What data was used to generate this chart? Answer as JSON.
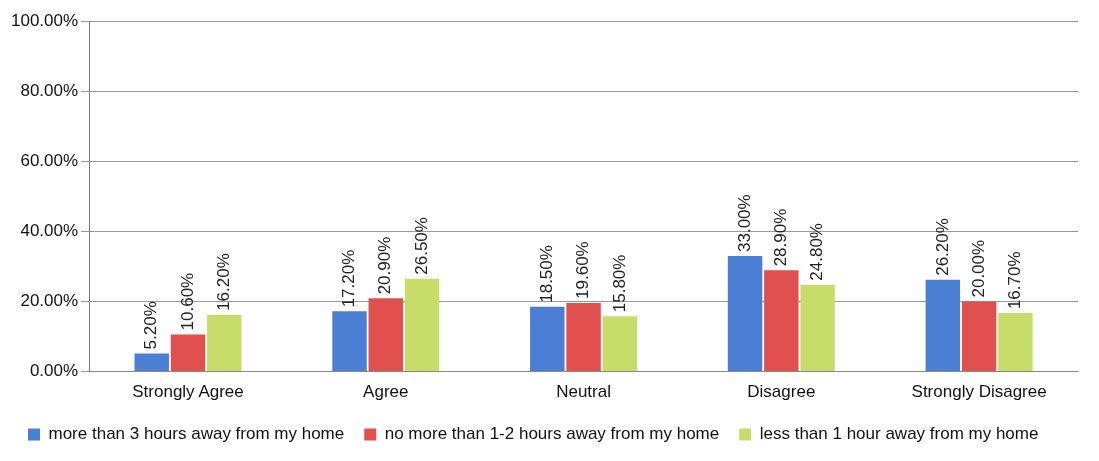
{
  "chart_data": {
    "type": "bar",
    "categories": [
      "Strongly Agree",
      "Agree",
      "Neutral",
      "Disagree",
      "Strongly Disagree"
    ],
    "series": [
      {
        "name": "more than 3 hours away from my home",
        "color": "#4a7fd4",
        "values": [
          5.2,
          17.2,
          18.5,
          33.0,
          26.2
        ],
        "value_labels": [
          "5.20%",
          "17.20%",
          "18.50%",
          "33.00%",
          "26.20%"
        ]
      },
      {
        "name": "no more than 1-2 hours away from my home",
        "color": "#e0504f",
        "values": [
          10.6,
          20.9,
          19.6,
          28.9,
          20.0
        ],
        "value_labels": [
          "10.60%",
          "20.90%",
          "19.60%",
          "28.90%",
          "20.00%"
        ]
      },
      {
        "name": "less than 1 hour away from my home",
        "color": "#c8dc6a",
        "values": [
          16.2,
          26.5,
          15.8,
          24.8,
          16.7
        ],
        "value_labels": [
          "16.20%",
          "26.50%",
          "15.80%",
          "24.80%",
          "16.70%"
        ]
      }
    ],
    "ylim": [
      0,
      100
    ],
    "yticks": [
      {
        "value": 0,
        "label": "0.00%"
      },
      {
        "value": 20,
        "label": "20.00%"
      },
      {
        "value": 40,
        "label": "40.00%"
      },
      {
        "value": 60,
        "label": "60.00%"
      },
      {
        "value": 80,
        "label": "80.00%"
      },
      {
        "value": 100,
        "label": "100.00%"
      }
    ],
    "grid": "y",
    "legend": "bottom"
  }
}
